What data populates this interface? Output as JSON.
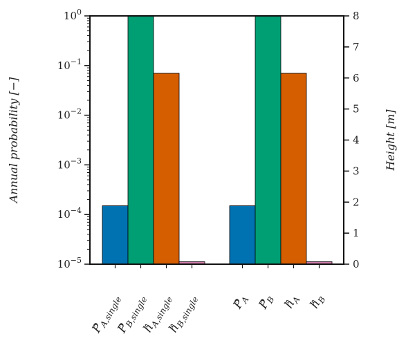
{
  "chart_data": {
    "type": "bar",
    "title": "",
    "left_axis": {
      "label": "Annual probability  [−]",
      "scale": "log",
      "ylim": [
        1e-05,
        1
      ],
      "tick_values": [
        1e-05,
        0.0001,
        0.001,
        0.01,
        0.1,
        1
      ],
      "tick_labels": [
        {
          "base": "10",
          "exp": "−5"
        },
        {
          "base": "10",
          "exp": "−4"
        },
        {
          "base": "10",
          "exp": "−3"
        },
        {
          "base": "10",
          "exp": "−2"
        },
        {
          "base": "10",
          "exp": "−1"
        },
        {
          "base": "10",
          "exp": "0"
        }
      ]
    },
    "right_axis": {
      "label": "Height  [m]",
      "scale": "linear",
      "ylim": [
        0,
        8
      ],
      "ticks": [
        0,
        1,
        2,
        3,
        4,
        5,
        6,
        7,
        8
      ]
    },
    "categories": [
      {
        "main": "P",
        "sub": "A,single",
        "hat": true
      },
      {
        "main": "P",
        "sub": "B,single",
        "hat": true
      },
      {
        "main": "h",
        "sub": "A,single",
        "hat": true
      },
      {
        "main": "h",
        "sub": "B,single",
        "hat": true
      },
      {
        "main": "P",
        "sub": "A",
        "hat": true
      },
      {
        "main": "P",
        "sub": "B",
        "hat": true
      },
      {
        "main": "h",
        "sub": "A",
        "hat": true
      },
      {
        "main": "h",
        "sub": "B",
        "hat": true
      }
    ],
    "bars": [
      {
        "group": 0,
        "axis": "left",
        "value": 0.00015,
        "color": "#0072B2"
      },
      {
        "group": 0,
        "axis": "left",
        "value": 1.0,
        "color": "#009E73"
      },
      {
        "group": 0,
        "axis": "right",
        "value": 6.15,
        "color": "#D55E00"
      },
      {
        "group": 0,
        "axis": "right",
        "value": 0.08,
        "color": "#CC79A7"
      },
      {
        "group": 1,
        "axis": "left",
        "value": 0.00015,
        "color": "#0072B2"
      },
      {
        "group": 1,
        "axis": "left",
        "value": 1.0,
        "color": "#009E73"
      },
      {
        "group": 1,
        "axis": "right",
        "value": 6.15,
        "color": "#D55E00"
      },
      {
        "group": 1,
        "axis": "right",
        "value": 0.08,
        "color": "#CC79A7"
      }
    ],
    "grid": false,
    "legend": "none"
  }
}
